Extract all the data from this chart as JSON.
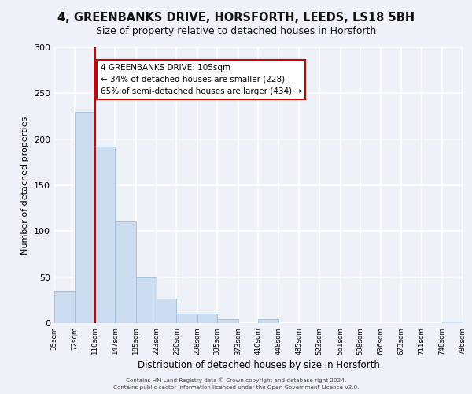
{
  "title1": "4, GREENBANKS DRIVE, HORSFORTH, LEEDS, LS18 5BH",
  "title2": "Size of property relative to detached houses in Horsforth",
  "xlabel": "Distribution of detached houses by size in Horsforth",
  "ylabel": "Number of detached properties",
  "bar_edges": [
    35,
    72,
    110,
    147,
    185,
    223,
    260,
    298,
    335,
    373,
    410,
    448,
    485,
    523,
    561,
    598,
    636,
    673,
    711,
    748,
    786
  ],
  "bar_heights": [
    35,
    230,
    192,
    111,
    50,
    27,
    10,
    10,
    4,
    0,
    4,
    0,
    0,
    0,
    0,
    0,
    0,
    0,
    0,
    2
  ],
  "bar_color": "#ccddf0",
  "bar_edge_color": "#9bbbd8",
  "property_line_x": 110,
  "property_line_color": "#cc0000",
  "annotation_title": "4 GREENBANKS DRIVE: 105sqm",
  "annotation_line1": "← 34% of detached houses are smaller (228)",
  "annotation_line2": "65% of semi-detached houses are larger (434) →",
  "annotation_box_facecolor": "#ffffff",
  "annotation_box_edgecolor": "#cc0000",
  "ylim": [
    0,
    300
  ],
  "yticks": [
    0,
    50,
    100,
    150,
    200,
    250,
    300
  ],
  "tick_labels": [
    "35sqm",
    "72sqm",
    "110sqm",
    "147sqm",
    "185sqm",
    "223sqm",
    "260sqm",
    "298sqm",
    "335sqm",
    "373sqm",
    "410sqm",
    "448sqm",
    "485sqm",
    "523sqm",
    "561sqm",
    "598sqm",
    "636sqm",
    "673sqm",
    "711sqm",
    "748sqm",
    "786sqm"
  ],
  "footer1": "Contains HM Land Registry data © Crown copyright and database right 2024.",
  "footer2": "Contains public sector information licensed under the Open Government Licence v3.0.",
  "bg_color": "#eef2f8",
  "grid_color": "#ffffff",
  "title1_fontsize": 10.5,
  "title2_fontsize": 9
}
